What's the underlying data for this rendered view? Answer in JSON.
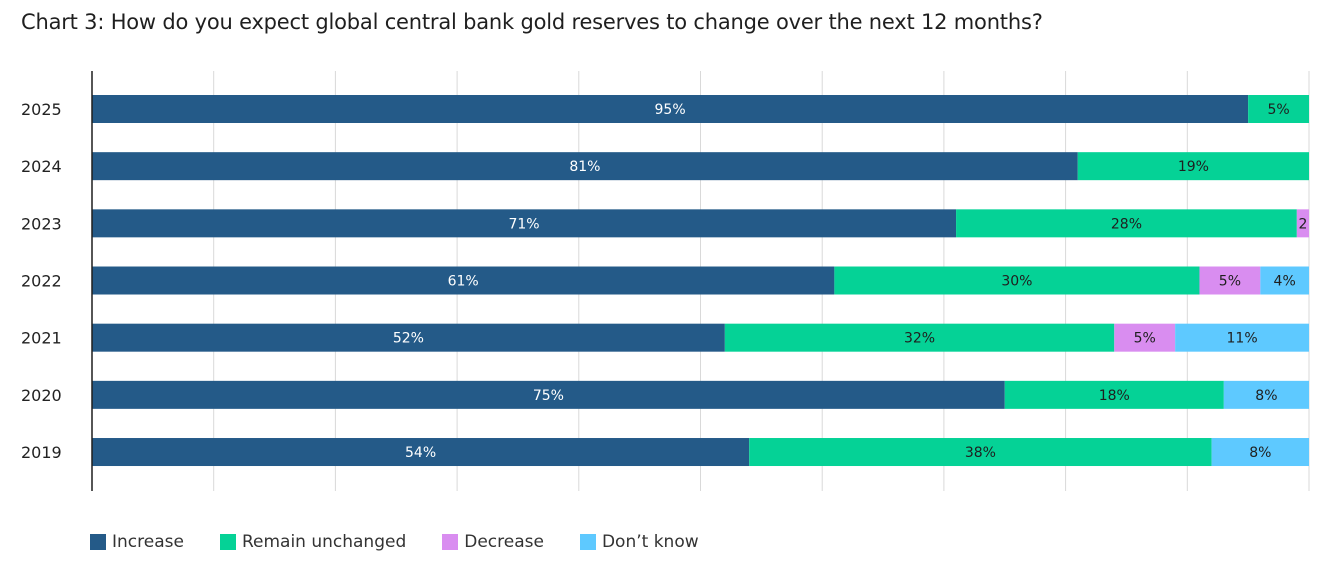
{
  "title": "Chart 3: How do you expect global central bank gold reserves to change over the next 12 months?",
  "chart_data": {
    "type": "bar",
    "orientation": "horizontal",
    "stacked": true,
    "categories": [
      "2025",
      "2024",
      "2023",
      "2022",
      "2021",
      "2020",
      "2019"
    ],
    "series": [
      {
        "name": "Increase",
        "color": "#245a88",
        "label_color": "#ffffff",
        "values": [
          95,
          81,
          71,
          61,
          52,
          75,
          54
        ],
        "labels": [
          "95%",
          "81%",
          "71%",
          "61%",
          "52%",
          "75%",
          "54%"
        ]
      },
      {
        "name": "Remain unchanged",
        "color": "#05d296",
        "label_color": "#1f1f1f",
        "values": [
          5,
          19,
          28,
          30,
          32,
          18,
          38
        ],
        "labels": [
          "5%",
          "19%",
          "28%",
          "30%",
          "32%",
          "18%",
          "38%"
        ]
      },
      {
        "name": "Decrease",
        "color": "#d98df0",
        "label_color": "#1f1f1f",
        "values": [
          0,
          0,
          2,
          5,
          5,
          0,
          0
        ],
        "labels": [
          "",
          "",
          "2",
          "5%",
          "5%",
          "",
          ""
        ]
      },
      {
        "name": "Don’t know",
        "color": "#5ec9ff",
        "label_color": "#1f1f1f",
        "values": [
          0,
          0,
          0,
          4,
          11,
          8,
          8
        ],
        "labels": [
          "",
          "",
          "",
          "4%",
          "11%",
          "8%",
          "8%"
        ]
      }
    ],
    "xlim": [
      0,
      100
    ],
    "grid": true,
    "legend_position": "bottom-left"
  }
}
